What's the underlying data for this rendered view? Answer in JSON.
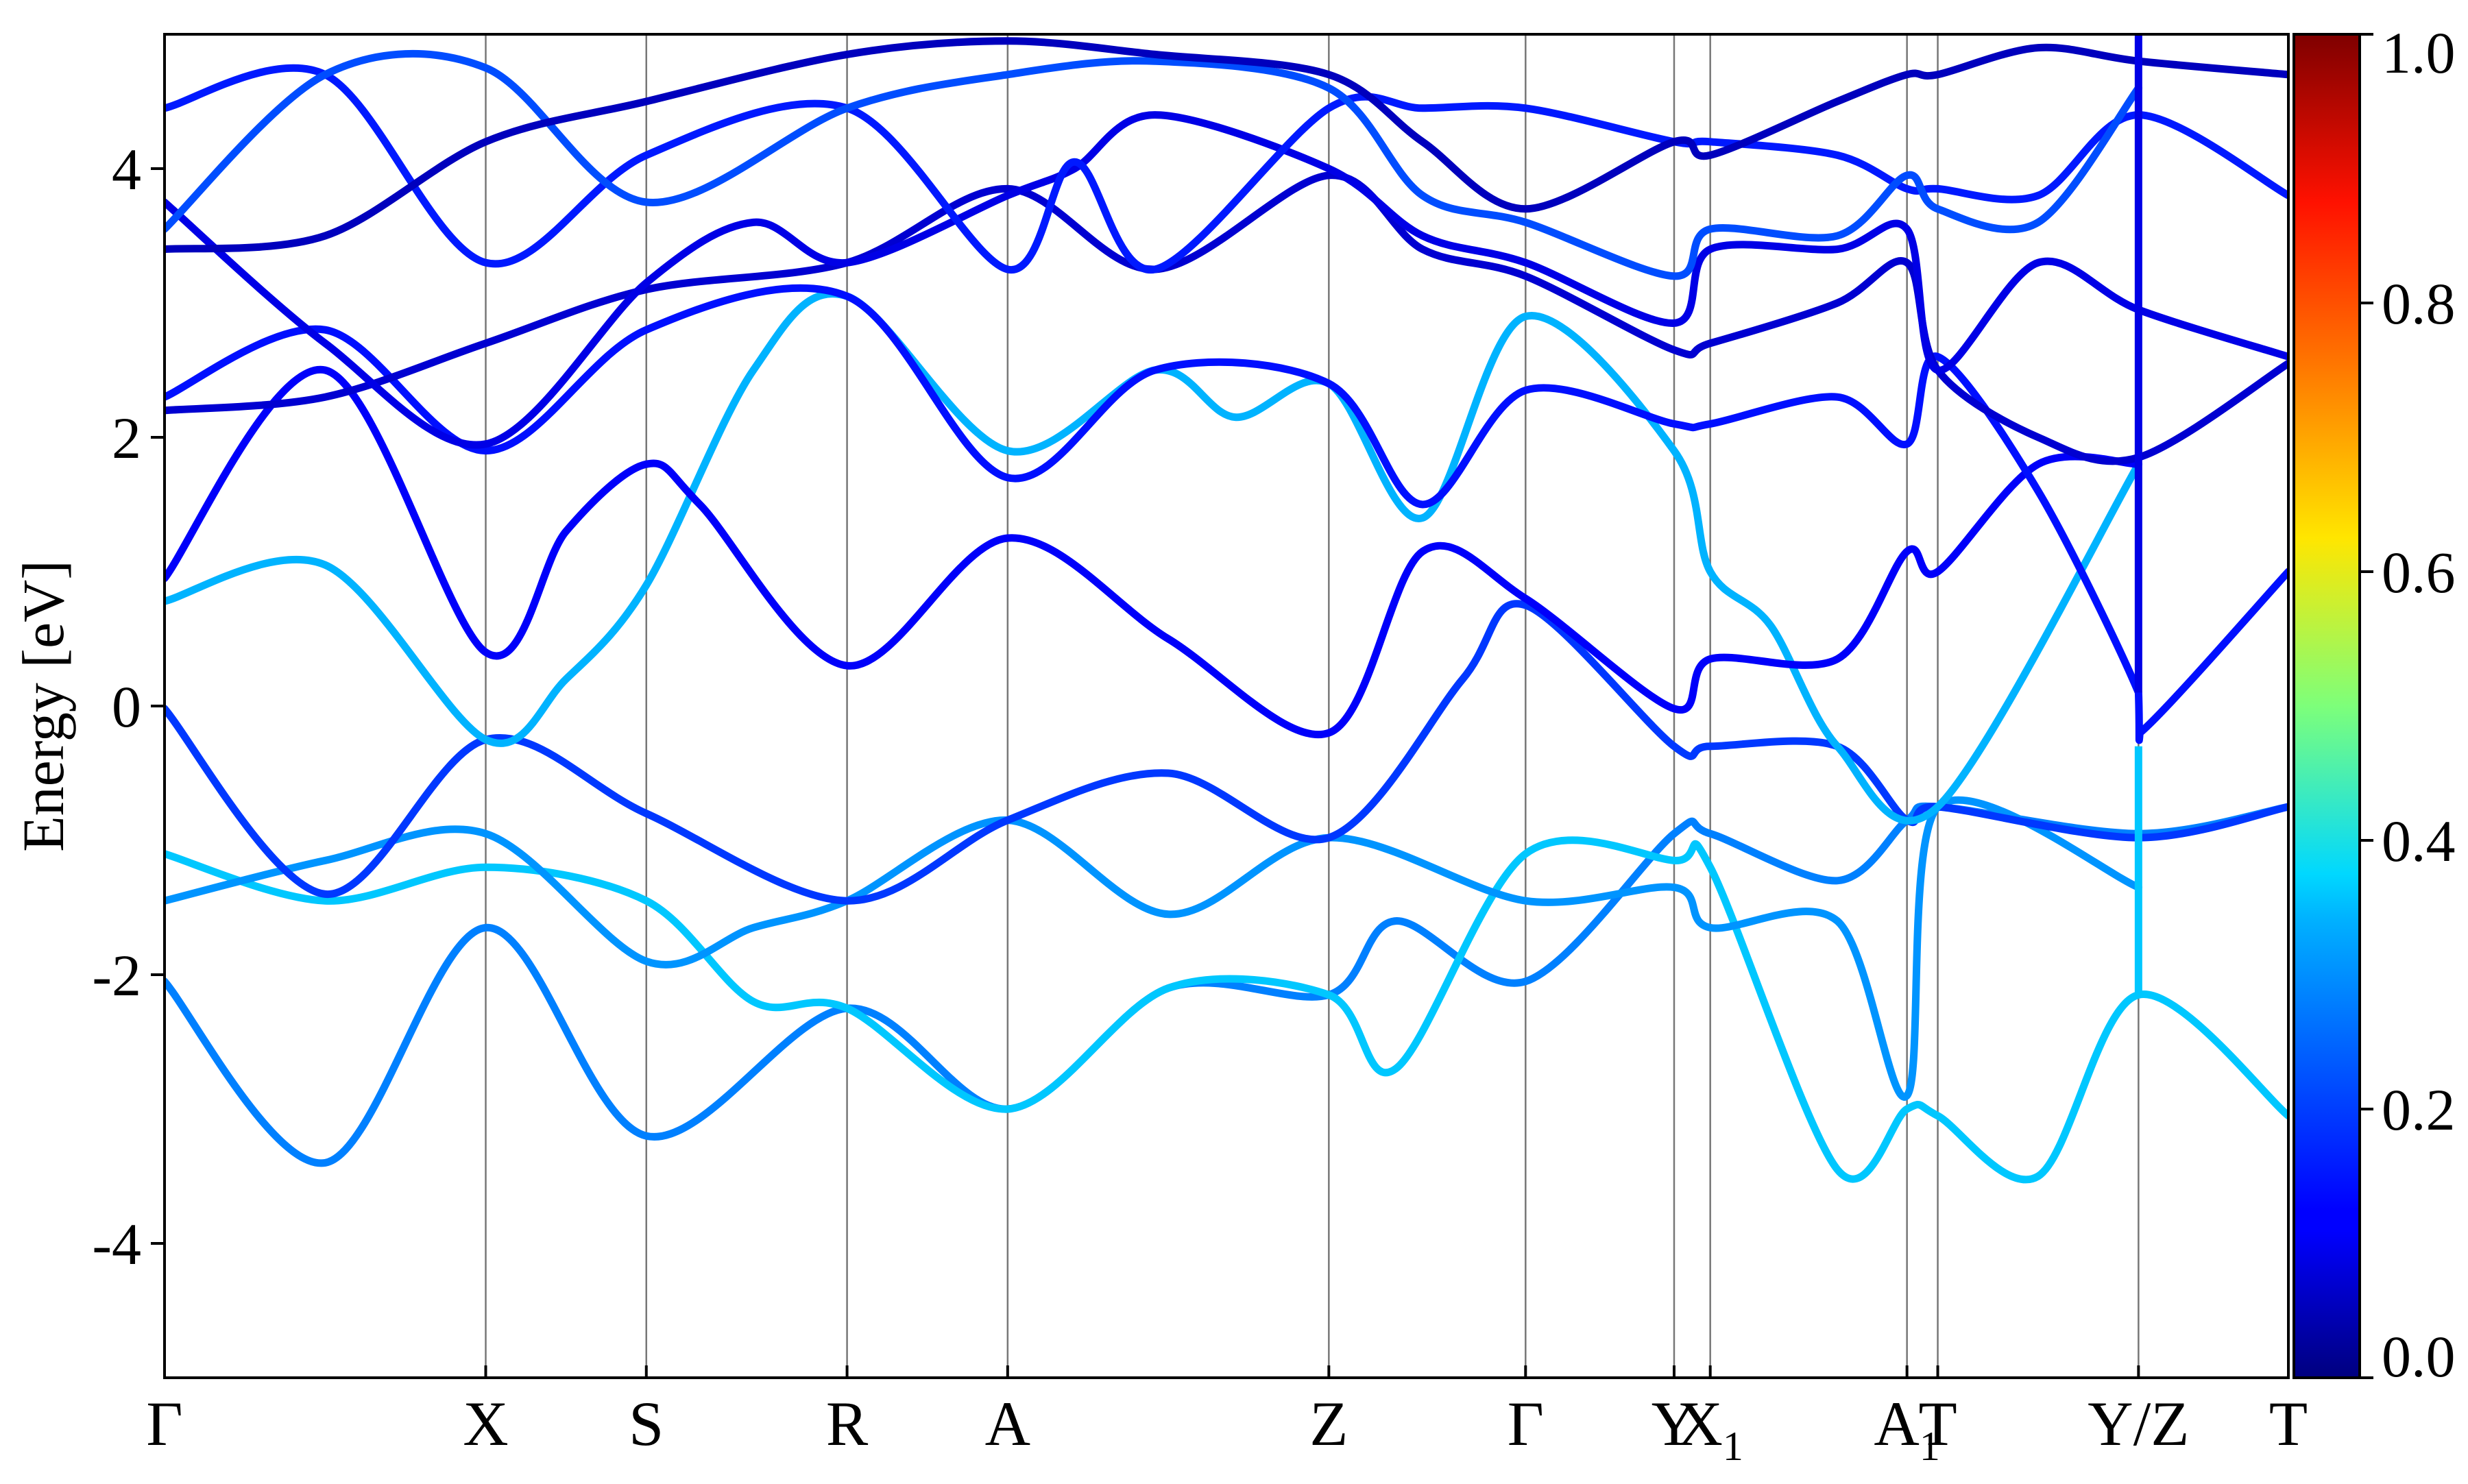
{
  "chart_data": {
    "type": "line",
    "title": "",
    "ylabel": "Energy [eV]",
    "xlabel": "",
    "ylim": [
      -5,
      5
    ],
    "yticks": [
      -4,
      -2,
      0,
      2,
      4
    ],
    "ytick_labels": [
      "-4",
      "-2",
      "0",
      "2",
      "4"
    ],
    "grid": false,
    "kpath_positions": [
      0,
      2.4,
      3.6,
      5.1,
      6.3,
      8.7,
      10.17,
      11.28,
      11.55,
      13.02,
      13.25,
      14.75,
      15.87
    ],
    "high_symmetry_labels": [
      {
        "k": 0,
        "label": "Γ"
      },
      {
        "k": 2.4,
        "label": "X"
      },
      {
        "k": 3.6,
        "label": "S"
      },
      {
        "k": 5.1,
        "label": "R"
      },
      {
        "k": 6.3,
        "label": "A"
      },
      {
        "k": 8.7,
        "label": "Z"
      },
      {
        "k": 10.17,
        "label": "Γ"
      },
      {
        "k": 11.28,
        "label": "Y"
      },
      {
        "k": 11.55,
        "label": "X",
        "subscript": "1"
      },
      {
        "k": 13.02,
        "label": "A",
        "subscript": "1"
      },
      {
        "k": 13.25,
        "label": "T"
      },
      {
        "k": 14.75,
        "label": "Y/Z"
      },
      {
        "k": 15.87,
        "label": "T"
      }
    ],
    "colorbar": {
      "colormap": "jet",
      "min": 0.0,
      "max": 1.0,
      "ticks": [
        0.0,
        0.2,
        0.4,
        0.6,
        0.8,
        1.0
      ],
      "tick_labels": [
        "0.0",
        "0.2",
        "0.4",
        "0.6",
        "0.8",
        "1.0"
      ]
    },
    "series": [
      {
        "weight": 0.25,
        "points": [
          [
            0,
            -2.05
          ],
          [
            1.2,
            -3.4
          ],
          [
            2.4,
            -1.65
          ],
          [
            3.6,
            -3.2
          ],
          [
            5.1,
            -2.25
          ],
          [
            6.3,
            -3.0
          ],
          [
            7.5,
            -2.1
          ],
          [
            8.7,
            -2.15
          ],
          [
            9.2,
            -1.6
          ],
          [
            10.17,
            -2.05
          ],
          [
            11.28,
            -0.95
          ],
          [
            11.55,
            -0.95
          ],
          [
            12.5,
            -1.3
          ],
          [
            13.02,
            -0.85
          ],
          [
            13.25,
            -0.75
          ],
          [
            14.75,
            -0.95
          ],
          [
            15.87,
            -0.75
          ]
        ]
      },
      {
        "weight": 0.32,
        "points": [
          [
            0,
            -1.1
          ],
          [
            1.2,
            -1.45
          ],
          [
            2.4,
            -1.2
          ],
          [
            3.6,
            -1.45
          ],
          [
            4.4,
            -2.2
          ],
          [
            5.1,
            -2.25
          ],
          [
            6.3,
            -3.0
          ],
          [
            7.5,
            -2.1
          ],
          [
            8.7,
            -2.15
          ],
          [
            9.2,
            -2.7
          ],
          [
            10.17,
            -1.1
          ],
          [
            11.28,
            -1.15
          ],
          [
            11.55,
            -1.2
          ],
          [
            12.5,
            -3.45
          ],
          [
            13.02,
            -3.0
          ],
          [
            13.25,
            -3.05
          ],
          [
            14.0,
            -3.5
          ],
          [
            14.75,
            -2.15
          ],
          [
            15.87,
            -3.05
          ]
        ]
      },
      {
        "weight": 0.27,
        "points": [
          [
            0,
            -1.45
          ],
          [
            1.2,
            -1.15
          ],
          [
            2.4,
            -0.95
          ],
          [
            3.6,
            -1.9
          ],
          [
            4.4,
            -1.65
          ],
          [
            5.1,
            -1.45
          ],
          [
            6.3,
            -0.85
          ],
          [
            7.5,
            -1.55
          ],
          [
            8.7,
            -0.98
          ],
          [
            10.17,
            -1.45
          ],
          [
            11.28,
            -1.35
          ],
          [
            11.55,
            -1.65
          ],
          [
            12.5,
            -1.6
          ],
          [
            13.02,
            -2.9
          ],
          [
            13.25,
            -0.75
          ],
          [
            14.75,
            -1.35
          ]
        ]
      },
      {
        "weight": 0.18,
        "points": [
          [
            0,
            -0.02
          ],
          [
            1.2,
            -1.4
          ],
          [
            2.4,
            -0.25
          ],
          [
            3.6,
            -0.8
          ],
          [
            5.1,
            -1.45
          ],
          [
            6.3,
            -0.85
          ],
          [
            7.5,
            -0.5
          ],
          [
            8.7,
            -0.98
          ],
          [
            9.7,
            0.2
          ],
          [
            10.17,
            0.75
          ],
          [
            11.28,
            -0.3
          ],
          [
            11.55,
            -0.3
          ],
          [
            12.5,
            -0.3
          ],
          [
            13.02,
            -0.85
          ],
          [
            13.25,
            -0.75
          ],
          [
            14.75,
            -0.98
          ],
          [
            15.87,
            -0.75
          ]
        ]
      },
      {
        "weight": 0.3,
        "points": [
          [
            0,
            0.78
          ],
          [
            1.2,
            1.05
          ],
          [
            2.4,
            -0.25
          ],
          [
            3.0,
            0.2
          ],
          [
            3.6,
            0.9
          ],
          [
            4.4,
            2.5
          ],
          [
            5.1,
            3.05
          ],
          [
            6.3,
            1.9
          ],
          [
            7.4,
            2.5
          ],
          [
            8.0,
            2.15
          ],
          [
            8.7,
            2.4
          ],
          [
            9.4,
            1.4
          ],
          [
            10.17,
            2.9
          ],
          [
            11.28,
            1.9
          ],
          [
            11.55,
            1.0
          ],
          [
            12.0,
            0.6
          ],
          [
            12.5,
            -0.3
          ],
          [
            13.25,
            -0.75
          ],
          [
            14.75,
            1.8
          ]
        ]
      },
      {
        "weight": 0.12,
        "points": [
          [
            0,
            0.95
          ],
          [
            1.2,
            2.5
          ],
          [
            2.4,
            0.4
          ],
          [
            3.0,
            1.3
          ],
          [
            3.6,
            1.8
          ],
          [
            4.0,
            1.5
          ],
          [
            5.1,
            0.3
          ],
          [
            6.3,
            1.25
          ],
          [
            7.5,
            0.5
          ],
          [
            8.7,
            -0.2
          ],
          [
            9.4,
            1.15
          ],
          [
            10.17,
            0.8
          ],
          [
            11.28,
            -0.02
          ],
          [
            11.55,
            0.35
          ],
          [
            12.5,
            0.35
          ],
          [
            13.02,
            1.15
          ],
          [
            13.25,
            1.0
          ],
          [
            14.0,
            1.8
          ],
          [
            14.75,
            1.8
          ]
        ]
      },
      {
        "weight": 0.14,
        "points": [
          [
            0,
            2.3
          ],
          [
            1.2,
            2.8
          ],
          [
            2.4,
            1.9
          ],
          [
            3.6,
            2.8
          ],
          [
            5.1,
            3.05
          ],
          [
            6.3,
            1.7
          ],
          [
            7.4,
            2.5
          ],
          [
            8.7,
            2.4
          ],
          [
            9.4,
            1.5
          ],
          [
            10.17,
            2.35
          ],
          [
            11.28,
            2.1
          ],
          [
            11.55,
            2.1
          ],
          [
            12.5,
            2.3
          ],
          [
            13.02,
            1.95
          ],
          [
            13.25,
            2.6
          ],
          [
            14.0,
            1.6
          ],
          [
            14.75,
            0.1
          ],
          [
            14.76,
            -0.2
          ],
          [
            15.87,
            1.0
          ]
        ]
      },
      {
        "weight": 0.08,
        "points": [
          [
            0,
            2.2
          ],
          [
            1.2,
            2.3
          ],
          [
            2.4,
            2.7
          ],
          [
            3.6,
            3.1
          ],
          [
            5.1,
            3.3
          ],
          [
            6.3,
            3.85
          ],
          [
            7.4,
            3.25
          ],
          [
            8.7,
            3.95
          ],
          [
            9.4,
            3.4
          ],
          [
            10.17,
            3.2
          ],
          [
            11.28,
            2.65
          ],
          [
            11.55,
            2.7
          ],
          [
            12.5,
            3.0
          ],
          [
            13.02,
            3.3
          ],
          [
            13.25,
            2.5
          ],
          [
            14.0,
            2.0
          ],
          [
            14.75,
            1.85
          ],
          [
            15.87,
            2.55
          ]
        ]
      },
      {
        "weight": 0.1,
        "points": [
          [
            0,
            3.75
          ],
          [
            1.2,
            2.7
          ],
          [
            2.4,
            1.95
          ],
          [
            3.6,
            3.15
          ],
          [
            4.4,
            3.6
          ],
          [
            5.1,
            3.3
          ],
          [
            6.3,
            3.8
          ],
          [
            6.8,
            4.0
          ],
          [
            7.4,
            4.4
          ],
          [
            8.7,
            4.0
          ],
          [
            9.4,
            3.5
          ],
          [
            10.17,
            3.3
          ],
          [
            11.28,
            2.85
          ],
          [
            11.55,
            3.4
          ],
          [
            12.5,
            3.4
          ],
          [
            13.02,
            3.55
          ],
          [
            13.25,
            2.5
          ],
          [
            14.0,
            3.3
          ],
          [
            14.75,
            2.95
          ],
          [
            15.87,
            2.6
          ]
        ]
      },
      {
        "weight": 0.15,
        "points": [
          [
            0,
            4.45
          ],
          [
            1.2,
            4.7
          ],
          [
            2.4,
            3.3
          ],
          [
            3.6,
            4.1
          ],
          [
            5.1,
            4.45
          ],
          [
            6.3,
            3.25
          ],
          [
            6.8,
            4.05
          ],
          [
            7.4,
            3.25
          ],
          [
            8.7,
            4.45
          ],
          [
            9.4,
            4.45
          ],
          [
            10.17,
            4.45
          ],
          [
            11.28,
            4.2
          ],
          [
            11.55,
            4.2
          ],
          [
            12.5,
            4.1
          ],
          [
            13.02,
            3.85
          ],
          [
            13.25,
            3.85
          ],
          [
            14.0,
            3.8
          ],
          [
            14.75,
            4.4
          ],
          [
            15.87,
            3.8
          ]
        ]
      },
      {
        "weight": 0.2,
        "points": [
          [
            0,
            3.55
          ],
          [
            1.2,
            4.7
          ],
          [
            2.4,
            4.75
          ],
          [
            3.6,
            3.75
          ],
          [
            5.1,
            4.45
          ],
          [
            6.3,
            4.7
          ],
          [
            7.4,
            4.8
          ],
          [
            8.7,
            4.6
          ],
          [
            9.4,
            3.8
          ],
          [
            10.17,
            3.6
          ],
          [
            11.28,
            3.2
          ],
          [
            11.55,
            3.55
          ],
          [
            12.5,
            3.5
          ],
          [
            13.02,
            3.95
          ],
          [
            13.25,
            3.7
          ],
          [
            14.0,
            3.6
          ],
          [
            14.75,
            4.6
          ]
        ]
      },
      {
        "weight": 0.06,
        "points": [
          [
            0,
            3.4
          ],
          [
            1.2,
            3.5
          ],
          [
            2.4,
            4.2
          ],
          [
            3.6,
            4.5
          ],
          [
            5.1,
            4.85
          ],
          [
            6.3,
            4.95
          ],
          [
            7.4,
            4.85
          ],
          [
            8.7,
            4.7
          ],
          [
            9.4,
            4.2
          ],
          [
            10.17,
            3.7
          ],
          [
            11.28,
            4.2
          ],
          [
            11.55,
            4.1
          ],
          [
            12.5,
            4.5
          ],
          [
            13.02,
            4.7
          ],
          [
            13.25,
            4.7
          ],
          [
            14.0,
            4.9
          ],
          [
            14.75,
            4.8
          ],
          [
            15.87,
            4.7
          ]
        ]
      }
    ]
  }
}
